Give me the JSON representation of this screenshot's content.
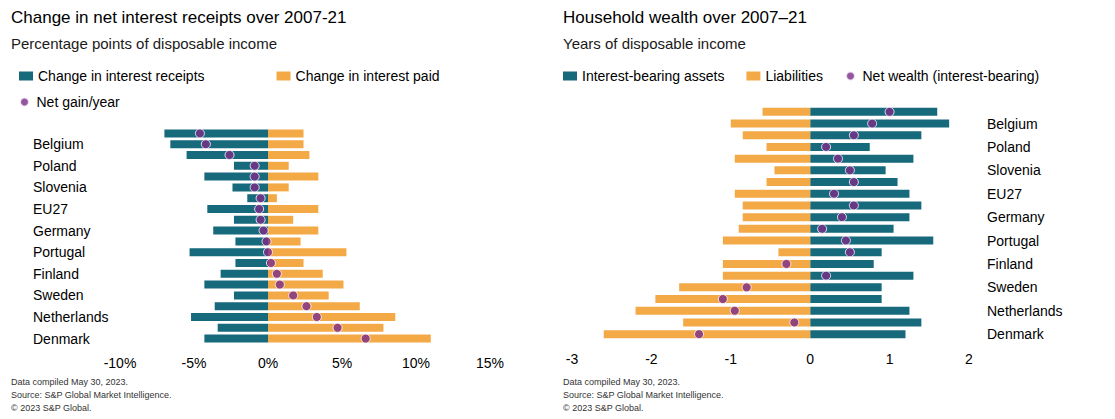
{
  "chart_data": [
    {
      "type": "bar",
      "orientation": "horizontal",
      "title": "Change in net interest receipts over 2007-21",
      "subtitle": "Percentage points of disposable income",
      "categories": [
        null,
        "Belgium",
        null,
        "Poland",
        null,
        "Slovenia",
        null,
        "EU27",
        null,
        "Germany",
        null,
        "Portugal",
        null,
        "Finland",
        null,
        "Sweden",
        null,
        "Netherlands",
        null,
        "Denmark"
      ],
      "series": [
        {
          "name": "Change in interest receipts",
          "type": "bar",
          "color": "#17697c",
          "values": [
            -7.0,
            -6.6,
            -5.5,
            -2.3,
            -4.3,
            -2.4,
            -1.4,
            -4.1,
            -2.3,
            -3.7,
            -2.2,
            -5.3,
            -2.2,
            -3.2,
            -4.3,
            -2.3,
            -3.6,
            -5.2,
            -3.4,
            -4.3
          ]
        },
        {
          "name": "Change in interest paid",
          "type": "bar",
          "color": "#f4a947",
          "values": [
            2.4,
            2.4,
            2.8,
            1.4,
            3.4,
            1.4,
            0.6,
            3.4,
            1.7,
            3.4,
            2.2,
            5.3,
            2.4,
            3.7,
            5.1,
            4.1,
            6.2,
            8.6,
            7.8,
            11.0
          ]
        },
        {
          "name": "Net gain/year",
          "type": "scatter",
          "marker": "circle",
          "color": "#7b2c88",
          "values": [
            -4.6,
            -4.2,
            -2.6,
            -0.9,
            -0.9,
            -0.9,
            -0.5,
            -0.6,
            -0.5,
            -0.3,
            -0.1,
            0.0,
            0.2,
            0.6,
            0.8,
            1.7,
            2.6,
            3.3,
            4.7,
            6.6
          ]
        }
      ],
      "xlim": [
        -10,
        15
      ],
      "xticks": [
        {
          "value": -10,
          "label": "-10%"
        },
        {
          "value": -5,
          "label": "-5%"
        },
        {
          "value": 0,
          "label": "0%"
        },
        {
          "value": 5,
          "label": "5%"
        },
        {
          "value": 10,
          "label": "10%"
        },
        {
          "value": 15,
          "label": "15%"
        }
      ],
      "grid": false,
      "legend": "top",
      "footnotes": [
        "Data compiled May 30, 2023.",
        "Source: S&P Global Market Intelligence.",
        "© 2023 S&P Global."
      ]
    },
    {
      "type": "bar",
      "orientation": "horizontal",
      "title": "Household wealth over 2007–21",
      "subtitle": "Years of disposable income",
      "categories": [
        null,
        "Belgium",
        null,
        "Poland",
        null,
        "Slovenia",
        null,
        "EU27",
        null,
        "Germany",
        null,
        "Portugal",
        null,
        "Finland",
        null,
        "Sweden",
        null,
        "Netherlands",
        null,
        "Denmark"
      ],
      "series": [
        {
          "name": "Interest-bearing assets",
          "type": "bar",
          "color": "#17697c",
          "values": [
            1.6,
            1.75,
            1.4,
            0.75,
            1.3,
            0.95,
            1.1,
            1.25,
            1.4,
            1.25,
            1.05,
            1.55,
            0.9,
            0.8,
            1.3,
            0.9,
            0.9,
            1.25,
            1.4,
            1.2
          ]
        },
        {
          "name": "Liabilities",
          "type": "bar",
          "color": "#f4a947",
          "values": [
            -0.6,
            -1.0,
            -0.85,
            -0.55,
            -0.95,
            -0.45,
            -0.55,
            -0.95,
            -0.85,
            -0.85,
            -0.9,
            -1.1,
            -0.4,
            -1.1,
            -1.1,
            -1.65,
            -1.95,
            -2.2,
            -1.6,
            -2.6
          ]
        },
        {
          "name": "Net wealth (interest-bearing)",
          "type": "scatter",
          "marker": "circle",
          "color": "#7b2c88",
          "values": [
            1.0,
            0.78,
            0.55,
            0.2,
            0.35,
            0.5,
            0.55,
            0.3,
            0.55,
            0.4,
            0.15,
            0.45,
            0.5,
            -0.3,
            0.2,
            -0.8,
            -1.1,
            -0.95,
            -0.2,
            -1.4
          ]
        }
      ],
      "xlim": [
        -3,
        2
      ],
      "xticks": [
        -3,
        -2,
        -1,
        0,
        1,
        2
      ],
      "grid": false,
      "legend": "top",
      "footnotes": [
        "Data compiled May 30, 2023.",
        "Source: S&P Global Market Intelligence.",
        "© 2023 S&P Global."
      ]
    }
  ]
}
